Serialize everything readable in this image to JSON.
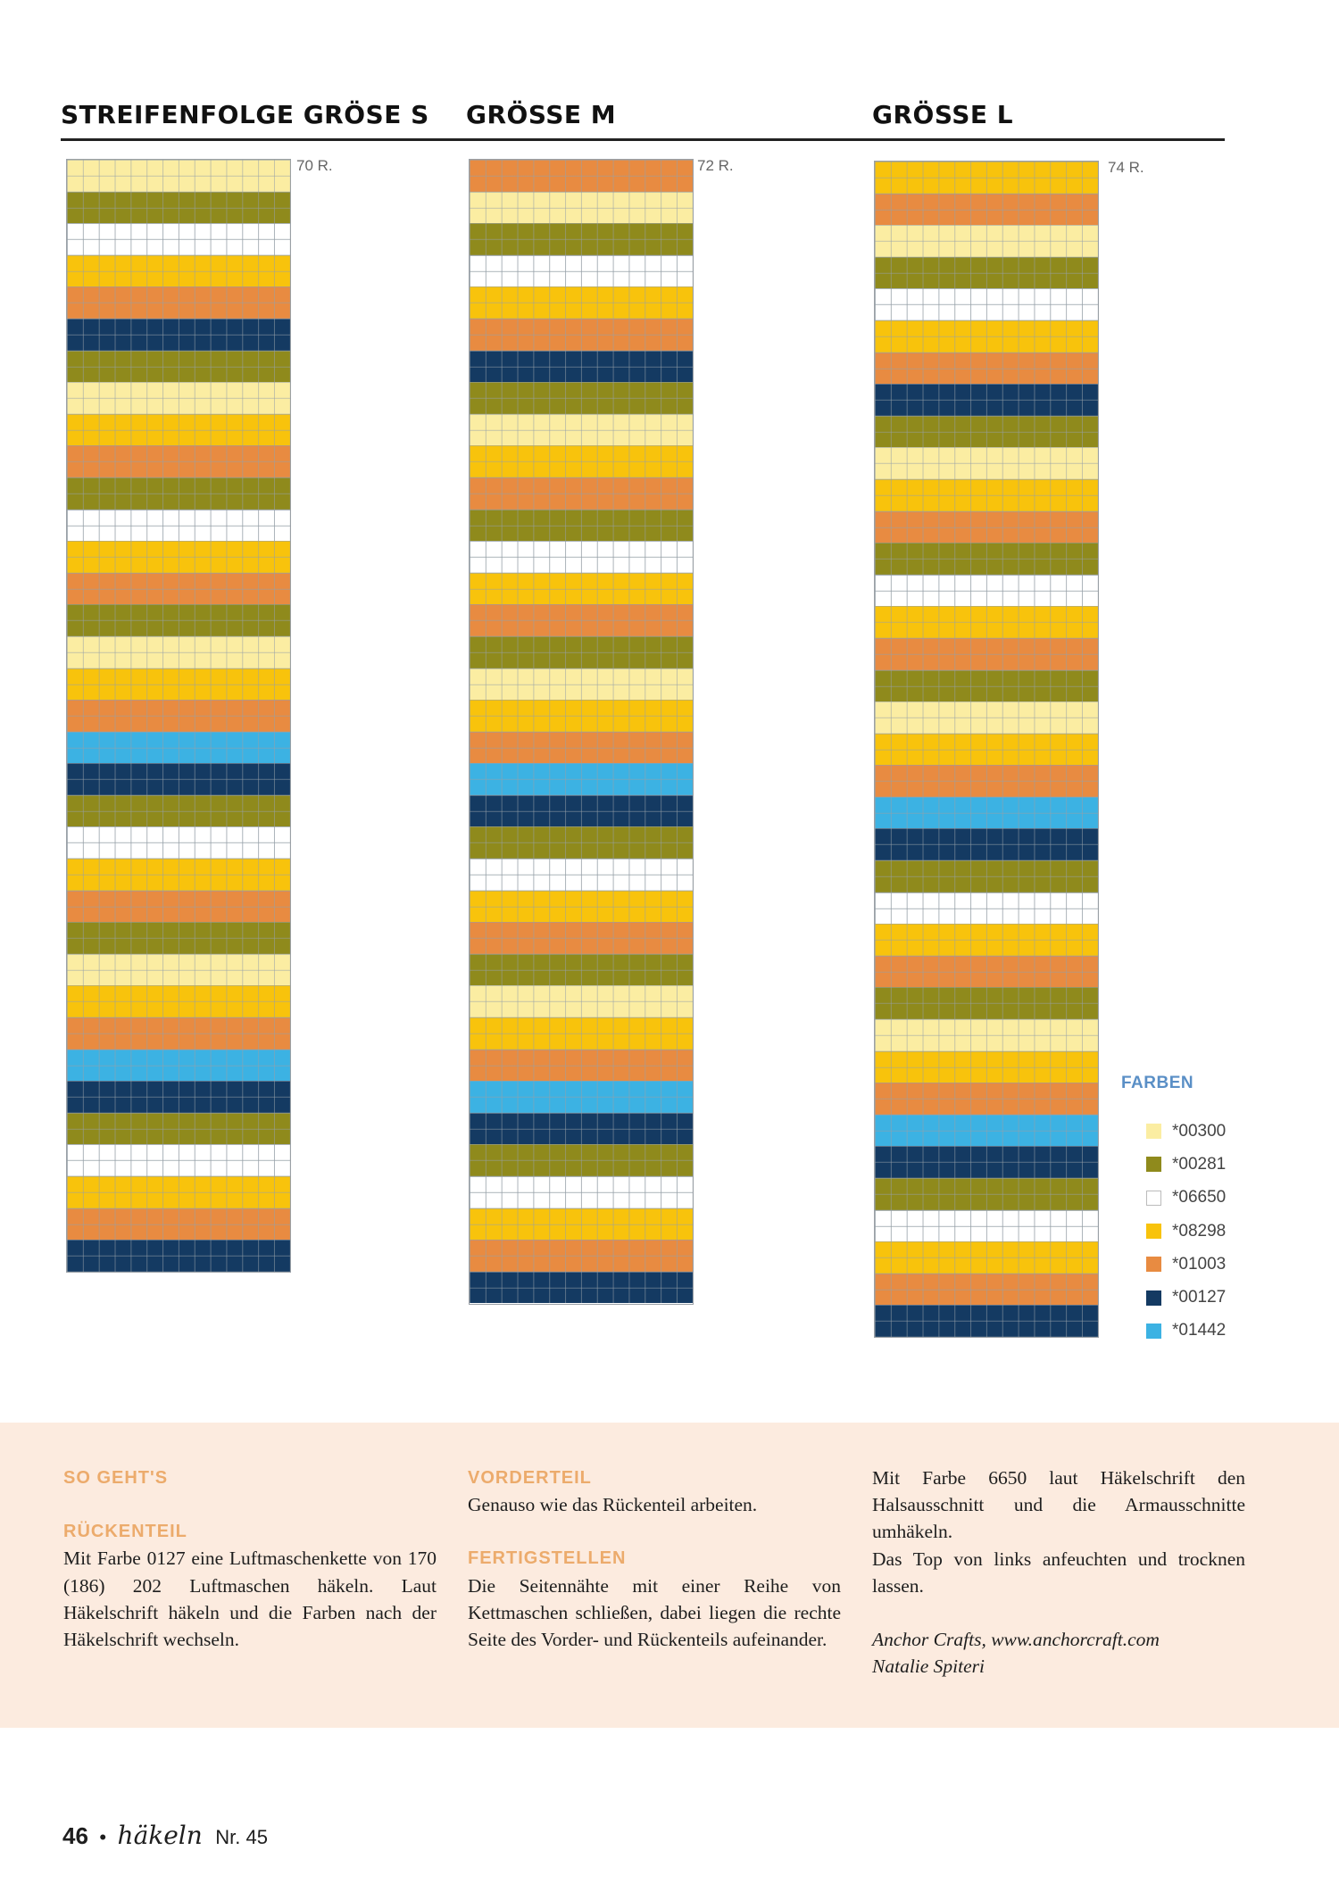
{
  "colors": {
    "00300": "#fbeda2",
    "00281": "#8f8a1c",
    "06650": "#ffffff",
    "08298": "#f8c30c",
    "01003": "#e88b41",
    "00127": "#143a62",
    "01442": "#3cb2e3"
  },
  "charts": [
    {
      "title": "STREIFENFOLGE GRÖSE S",
      "rows_label": "70 R.",
      "rows": 70,
      "stripes": [
        {
          "color": "00300",
          "rows": 2
        },
        {
          "color": "00281",
          "rows": 2
        },
        {
          "color": "06650",
          "rows": 2
        },
        {
          "color": "08298",
          "rows": 2
        },
        {
          "color": "01003",
          "rows": 2
        },
        {
          "color": "00127",
          "rows": 2
        },
        {
          "color": "00281",
          "rows": 2
        },
        {
          "color": "00300",
          "rows": 2
        },
        {
          "color": "08298",
          "rows": 2
        },
        {
          "color": "01003",
          "rows": 2
        },
        {
          "color": "00281",
          "rows": 2
        },
        {
          "color": "06650",
          "rows": 2
        },
        {
          "color": "08298",
          "rows": 2
        },
        {
          "color": "01003",
          "rows": 2
        },
        {
          "color": "00281",
          "rows": 2
        },
        {
          "color": "00300",
          "rows": 2
        },
        {
          "color": "08298",
          "rows": 2
        },
        {
          "color": "01003",
          "rows": 2
        },
        {
          "color": "01442",
          "rows": 2
        },
        {
          "color": "00127",
          "rows": 2
        },
        {
          "color": "00281",
          "rows": 2
        },
        {
          "color": "06650",
          "rows": 2
        },
        {
          "color": "08298",
          "rows": 2
        },
        {
          "color": "01003",
          "rows": 2
        },
        {
          "color": "00281",
          "rows": 2
        },
        {
          "color": "00300",
          "rows": 2
        },
        {
          "color": "08298",
          "rows": 2
        },
        {
          "color": "01003",
          "rows": 2
        },
        {
          "color": "01442",
          "rows": 2
        },
        {
          "color": "00127",
          "rows": 2
        },
        {
          "color": "00281",
          "rows": 2
        },
        {
          "color": "06650",
          "rows": 2
        },
        {
          "color": "08298",
          "rows": 2
        },
        {
          "color": "01003",
          "rows": 2
        },
        {
          "color": "00127",
          "rows": 2
        }
      ]
    },
    {
      "title": "GRÖSSE M",
      "rows_label": "72 R.",
      "rows": 72,
      "stripes": [
        {
          "color": "01003",
          "rows": 2
        },
        {
          "color": "00300",
          "rows": 2
        },
        {
          "color": "00281",
          "rows": 2
        },
        {
          "color": "06650",
          "rows": 2
        },
        {
          "color": "08298",
          "rows": 2
        },
        {
          "color": "01003",
          "rows": 2
        },
        {
          "color": "00127",
          "rows": 2
        },
        {
          "color": "00281",
          "rows": 2
        },
        {
          "color": "00300",
          "rows": 2
        },
        {
          "color": "08298",
          "rows": 2
        },
        {
          "color": "01003",
          "rows": 2
        },
        {
          "color": "00281",
          "rows": 2
        },
        {
          "color": "06650",
          "rows": 2
        },
        {
          "color": "08298",
          "rows": 2
        },
        {
          "color": "01003",
          "rows": 2
        },
        {
          "color": "00281",
          "rows": 2
        },
        {
          "color": "00300",
          "rows": 2
        },
        {
          "color": "08298",
          "rows": 2
        },
        {
          "color": "01003",
          "rows": 2
        },
        {
          "color": "01442",
          "rows": 2
        },
        {
          "color": "00127",
          "rows": 2
        },
        {
          "color": "00281",
          "rows": 2
        },
        {
          "color": "06650",
          "rows": 2
        },
        {
          "color": "08298",
          "rows": 2
        },
        {
          "color": "01003",
          "rows": 2
        },
        {
          "color": "00281",
          "rows": 2
        },
        {
          "color": "00300",
          "rows": 2
        },
        {
          "color": "08298",
          "rows": 2
        },
        {
          "color": "01003",
          "rows": 2
        },
        {
          "color": "01442",
          "rows": 2
        },
        {
          "color": "00127",
          "rows": 2
        },
        {
          "color": "00281",
          "rows": 2
        },
        {
          "color": "06650",
          "rows": 2
        },
        {
          "color": "08298",
          "rows": 2
        },
        {
          "color": "01003",
          "rows": 2
        },
        {
          "color": "00127",
          "rows": 2
        }
      ]
    },
    {
      "title": "GRÖSSE L",
      "rows_label": "74 R.",
      "rows": 74,
      "stripes": [
        {
          "color": "08298",
          "rows": 2
        },
        {
          "color": "01003",
          "rows": 2
        },
        {
          "color": "00300",
          "rows": 2
        },
        {
          "color": "00281",
          "rows": 2
        },
        {
          "color": "06650",
          "rows": 2
        },
        {
          "color": "08298",
          "rows": 2
        },
        {
          "color": "01003",
          "rows": 2
        },
        {
          "color": "00127",
          "rows": 2
        },
        {
          "color": "00281",
          "rows": 2
        },
        {
          "color": "00300",
          "rows": 2
        },
        {
          "color": "08298",
          "rows": 2
        },
        {
          "color": "01003",
          "rows": 2
        },
        {
          "color": "00281",
          "rows": 2
        },
        {
          "color": "06650",
          "rows": 2
        },
        {
          "color": "08298",
          "rows": 2
        },
        {
          "color": "01003",
          "rows": 2
        },
        {
          "color": "00281",
          "rows": 2
        },
        {
          "color": "00300",
          "rows": 2
        },
        {
          "color": "08298",
          "rows": 2
        },
        {
          "color": "01003",
          "rows": 2
        },
        {
          "color": "01442",
          "rows": 2
        },
        {
          "color": "00127",
          "rows": 2
        },
        {
          "color": "00281",
          "rows": 2
        },
        {
          "color": "06650",
          "rows": 2
        },
        {
          "color": "08298",
          "rows": 2
        },
        {
          "color": "01003",
          "rows": 2
        },
        {
          "color": "00281",
          "rows": 2
        },
        {
          "color": "00300",
          "rows": 2
        },
        {
          "color": "08298",
          "rows": 2
        },
        {
          "color": "01003",
          "rows": 2
        },
        {
          "color": "01442",
          "rows": 2
        },
        {
          "color": "00127",
          "rows": 2
        },
        {
          "color": "00281",
          "rows": 2
        },
        {
          "color": "06650",
          "rows": 2
        },
        {
          "color": "08298",
          "rows": 2
        },
        {
          "color": "01003",
          "rows": 2
        },
        {
          "color": "00127",
          "rows": 2
        }
      ]
    }
  ],
  "legend": {
    "title": "FARBEN",
    "items": [
      {
        "code": "00300",
        "label": "*00300"
      },
      {
        "code": "00281",
        "label": "*00281"
      },
      {
        "code": "06650",
        "label": "*06650"
      },
      {
        "code": "08298",
        "label": "*08298"
      },
      {
        "code": "01003",
        "label": "*01003"
      },
      {
        "code": "00127",
        "label": "*00127"
      },
      {
        "code": "01442",
        "label": "*01442"
      }
    ]
  },
  "instructions": {
    "col1": {
      "heading": "SO GEHT'S",
      "subheading": "RÜCKENTEIL",
      "text": "Mit Farbe 0127 eine Luftmaschenkette von 170 (186) 202 Luftmaschen häkeln. Laut Häkelschrift häkeln und die Farben nach der Häkelschrift wechseln."
    },
    "col2": {
      "heading1": "VORDERTEIL",
      "text1": "Genauso wie das Rückenteil arbeiten.",
      "heading2": "FERTIGSTELLEN",
      "text2": "Die Seitennähte mit einer Reihe von Kettmaschen schließen, dabei liegen die rechte Seite des Vorder- und Rückenteils aufeinander."
    },
    "col3": {
      "text1": "Mit Farbe 6650 laut Häkelschrift den Halsausschnitt und die Armausschnitte umhäkeln.",
      "text2": "Das Top von links anfeuchten und trocknen lassen.",
      "credit1": "Anchor Crafts, www.anchorcraft.com",
      "credit2": "Natalie Spiteri"
    }
  },
  "footer": {
    "page_number": "46",
    "bullet": "•",
    "magazine": "häkeln",
    "issue": "Nr. 45"
  }
}
